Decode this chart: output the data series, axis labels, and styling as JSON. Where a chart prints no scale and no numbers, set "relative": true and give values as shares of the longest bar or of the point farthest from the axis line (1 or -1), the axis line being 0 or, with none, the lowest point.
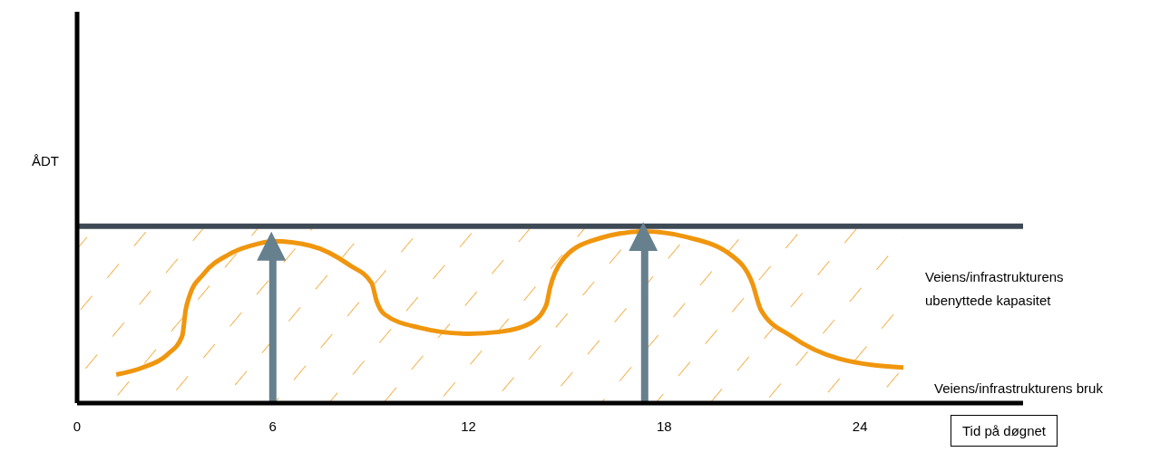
{
  "chart_data": {
    "type": "line",
    "relative": true,
    "xlabel": "Tid på døgnet",
    "ylabel": "ÅDT",
    "xlim": [
      0,
      29
    ],
    "xticks": [
      0,
      6,
      12,
      18,
      24
    ],
    "series": [
      {
        "name": "Veiens/infrastrukturens bruk",
        "color": "#f0960e",
        "x": [
          1.2,
          2.01,
          2.78,
          3.22,
          3.33,
          3.44,
          3.87,
          4.64,
          5.52,
          6.0,
          7.15,
          8.36,
          9.03,
          9.18,
          9.42,
          10.48,
          12.0,
          12.95,
          13.9,
          14.38,
          14.5,
          14.86,
          15.81,
          17.4,
          18.65,
          20.1,
          20.7,
          20.96,
          21.9,
          23.35,
          25.33
        ],
        "values": [
          0.166,
          0.207,
          0.285,
          0.389,
          0.544,
          0.622,
          0.751,
          0.865,
          0.927,
          0.943,
          0.917,
          0.803,
          0.699,
          0.596,
          0.518,
          0.44,
          0.404,
          0.415,
          0.466,
          0.57,
          0.674,
          0.829,
          0.948,
          1.0,
          0.969,
          0.855,
          0.699,
          0.544,
          0.389,
          0.259,
          0.207
        ]
      }
    ],
    "ref_lines": [
      {
        "axis": "y",
        "value": 1.03,
        "color": "#3d4a55"
      },
      {
        "axis": "x",
        "value": 6,
        "color": "#66808e"
      },
      {
        "axis": "x",
        "value": 17.4,
        "color": "#66808e"
      }
    ],
    "bands": [
      {
        "axis": "y",
        "from": 0,
        "to": 1.03,
        "label": "Veiens/infrastrukturens ubenyttede kapasitet",
        "color": "#f0960e"
      }
    ],
    "legend": false,
    "grid": false,
    "marker": "none",
    "line_style": "solid"
  }
}
